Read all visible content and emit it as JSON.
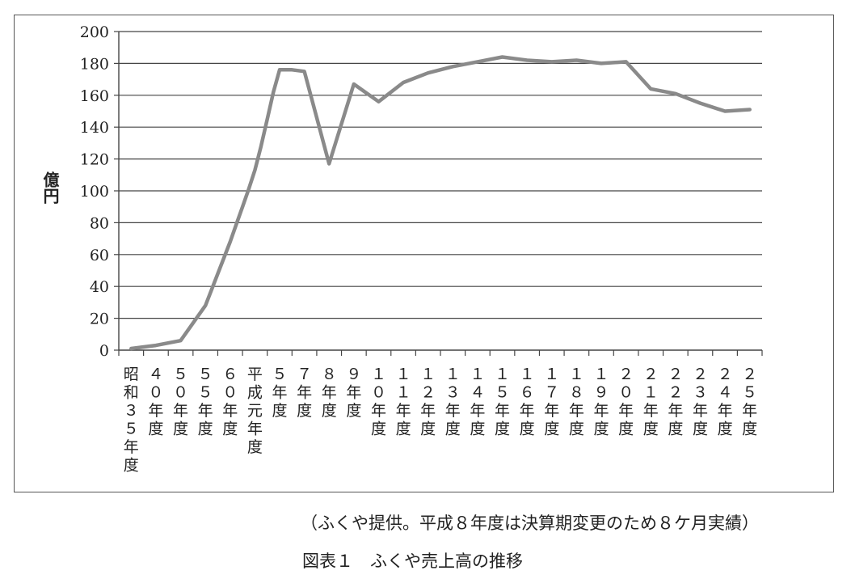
{
  "chart_data": {
    "type": "line",
    "ylabel": "億円",
    "ylim": [
      0,
      200
    ],
    "yticks": [
      0,
      20,
      40,
      60,
      80,
      100,
      120,
      140,
      160,
      180,
      200
    ],
    "grid": true,
    "line_color": "#8a8a8a",
    "categories": [
      "昭和35年度",
      "40年度",
      "50年度",
      "55年度",
      "60年度",
      "",
      "",
      "",
      "平成元年度",
      "",
      "",
      "",
      "5年度",
      "",
      "7年度",
      "8年度",
      "9年度",
      "10年度",
      "11年度",
      "12年度",
      "13年度",
      "14年度",
      "15年度",
      "16年度",
      "17年度",
      "18年度",
      "19年度",
      "20年度",
      "21年度",
      "22年度",
      "23年度",
      "24年度",
      "25年度"
    ],
    "x": [
      0,
      1,
      2,
      3,
      4,
      4.25,
      4.5,
      4.75,
      5,
      5.25,
      5.5,
      5.75,
      6,
      6.5,
      7,
      8,
      9,
      10,
      11,
      12,
      13,
      14,
      15,
      16,
      17,
      18,
      19,
      20,
      21,
      22,
      23,
      24,
      25
    ],
    "values": [
      1,
      3,
      6,
      28,
      68,
      79,
      90,
      101,
      113,
      128,
      145,
      162,
      176,
      176,
      175,
      117,
      167,
      156,
      168,
      174,
      178,
      181,
      184,
      182,
      181,
      182,
      180,
      181,
      164,
      161,
      155,
      150,
      151
    ]
  },
  "source_note": "（ふくや提供。平成８年度は決算期変更のため８ケ月実績）",
  "figure_caption": "図表１　ふくや売上高の推移",
  "axis_category_labels": [
    "昭和３５年度",
    "４０年度",
    "５０年度",
    "５５年度",
    "６０年度",
    "平成元年度",
    "５年度",
    "７年度",
    "８年度",
    "９年度",
    "１０年度",
    "１１年度",
    "１２年度",
    "１３年度",
    "１４年度",
    "１５年度",
    "１６年度",
    "１７年度",
    "１８年度",
    "１９年度",
    "２０年度",
    "２１年度",
    "２２年度",
    "２３年度",
    "２４年度",
    "２５年度"
  ]
}
